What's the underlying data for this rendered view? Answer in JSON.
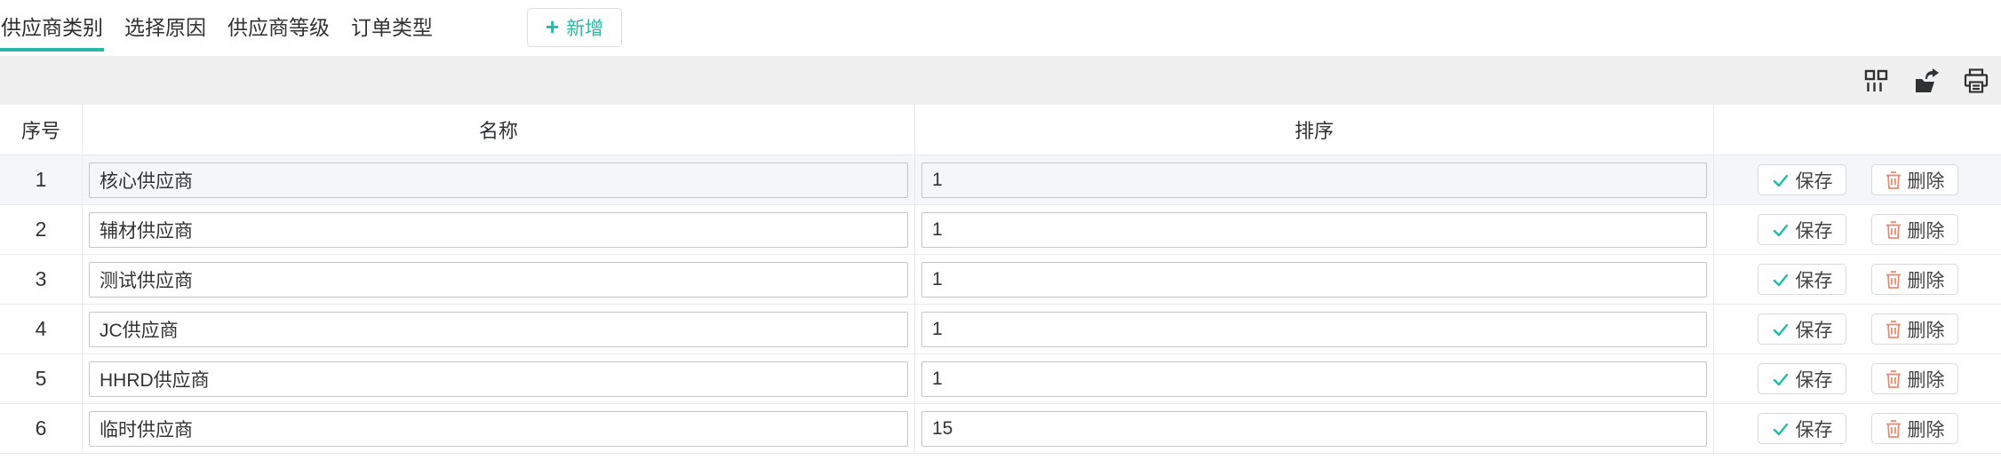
{
  "colors": {
    "accent": "#26b9a6",
    "danger": "#f08a6e"
  },
  "tabs": [
    {
      "name": "tab-supplier-category",
      "label": "供应商类别",
      "active": true
    },
    {
      "name": "tab-select-reason",
      "label": "选择原因",
      "active": false
    },
    {
      "name": "tab-supplier-level",
      "label": "供应商等级",
      "active": false
    },
    {
      "name": "tab-order-type",
      "label": "订单类型",
      "active": false
    }
  ],
  "toolbar": {
    "add_label": "新增",
    "add_icon": "plus-icon",
    "icons": [
      "column-settings-icon",
      "export-icon",
      "print-icon"
    ]
  },
  "table": {
    "columns": {
      "index": "序号",
      "name": "名称",
      "sort": "排序",
      "actions": ""
    },
    "save_label": "保存",
    "delete_label": "删除",
    "rows": [
      {
        "index": "1",
        "name": "核心供应商",
        "sort": "1"
      },
      {
        "index": "2",
        "name": "辅材供应商",
        "sort": "1"
      },
      {
        "index": "3",
        "name": "测试供应商",
        "sort": "1"
      },
      {
        "index": "4",
        "name": "JC供应商",
        "sort": "1"
      },
      {
        "index": "5",
        "name": "HHRD供应商",
        "sort": "1"
      },
      {
        "index": "6",
        "name": "临时供应商",
        "sort": "15"
      }
    ]
  }
}
